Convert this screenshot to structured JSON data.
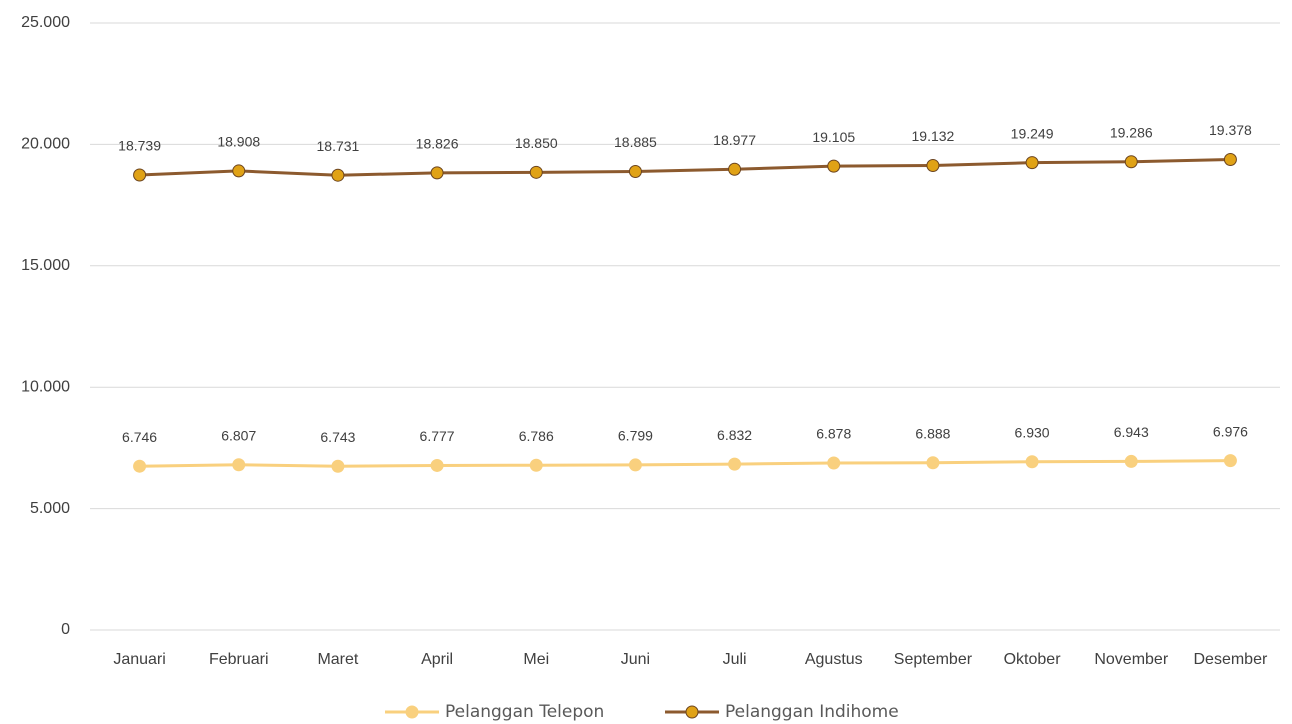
{
  "chart_data": {
    "type": "line",
    "categories": [
      "Januari",
      "Februari",
      "Maret",
      "April",
      "Mei",
      "Juni",
      "Juli",
      "Agustus",
      "September",
      "Oktober",
      "November",
      "Desember"
    ],
    "series": [
      {
        "name": "Pelanggan Telepon",
        "color": "#f9d07e",
        "marker_color": "#f9d07e",
        "values": [
          6746,
          6807,
          6743,
          6777,
          6786,
          6799,
          6832,
          6878,
          6888,
          6930,
          6943,
          6976
        ],
        "value_labels": [
          "6.746",
          "6.807",
          "6.743",
          "6.777",
          "6.786",
          "6.799",
          "6.832",
          "6.878",
          "6.888",
          "6.930",
          "6.943",
          "6.976"
        ]
      },
      {
        "name": "Pelanggan Indihome",
        "color": "#8c5a2e",
        "marker_color": "#e0a216",
        "values": [
          18739,
          18908,
          18731,
          18826,
          18850,
          18885,
          18977,
          19105,
          19132,
          19249,
          19286,
          19378
        ],
        "value_labels": [
          "18.739",
          "18.908",
          "18.731",
          "18.826",
          "18.850",
          "18.885",
          "18.977",
          "19.105",
          "19.132",
          "19.249",
          "19.286",
          "19.378"
        ]
      }
    ],
    "ylim": [
      0,
      25000
    ],
    "yticks": [
      0,
      {
        "value": 5000,
        "label": "5.000"
      },
      {
        "value": 10000,
        "label": "10.000"
      },
      {
        "value": 15000,
        "label": "15.000"
      },
      {
        "value": 20000,
        "label": "20.000"
      },
      {
        "value": 25000,
        "label": "25.000"
      }
    ],
    "grid": true,
    "legend": "bottom"
  }
}
